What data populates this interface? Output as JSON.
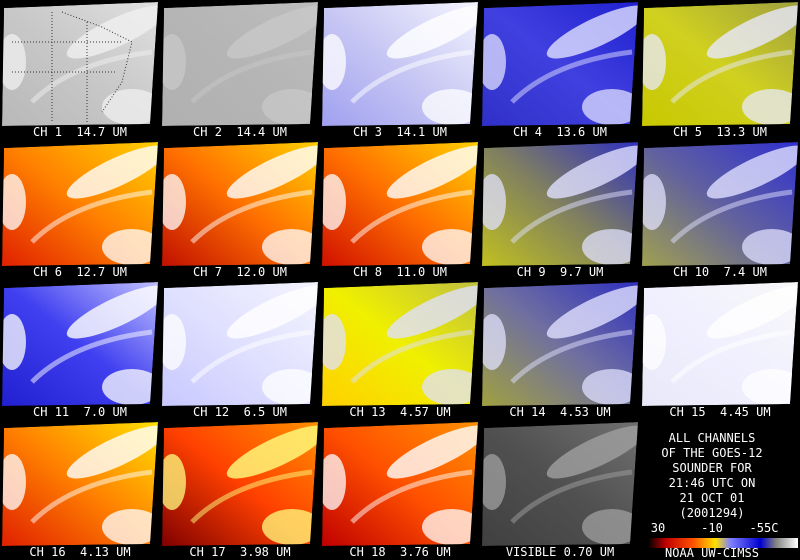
{
  "panels": [
    {
      "label": "CH 1  14.7 UM"
    },
    {
      "label": "CH 2  14.4 UM"
    },
    {
      "label": "CH 3  14.1 UM"
    },
    {
      "label": "CH 4  13.6 UM"
    },
    {
      "label": "CH 5  13.3 UM"
    },
    {
      "label": "CH 6  12.7 UM"
    },
    {
      "label": "CH 7  12.0 UM"
    },
    {
      "label": "CH 8  11.0 UM"
    },
    {
      "label": "CH 9  9.7 UM"
    },
    {
      "label": "CH 10  7.4 UM"
    },
    {
      "label": "CH 11  7.0 UM"
    },
    {
      "label": "CH 12  6.5 UM"
    },
    {
      "label": "CH 13  4.57 UM"
    },
    {
      "label": "CH 14  4.53 UM"
    },
    {
      "label": "CH 15  4.45 UM"
    },
    {
      "label": "CH 16  4.13 UM"
    },
    {
      "label": "CH 17  3.98 UM"
    },
    {
      "label": "CH 18  3.76 UM"
    },
    {
      "label": "VISIBLE 0.70 UM"
    }
  ],
  "info": {
    "lines": [
      "ALL CHANNELS",
      "OF THE GOES-12",
      "SOUNDER FOR",
      "21:46 UTC ON",
      "21 OCT 01",
      "(2001294)"
    ],
    "scale_labels": [
      "30",
      "-10",
      "-55C"
    ],
    "credit": "NOAA UW-CIMSS"
  }
}
